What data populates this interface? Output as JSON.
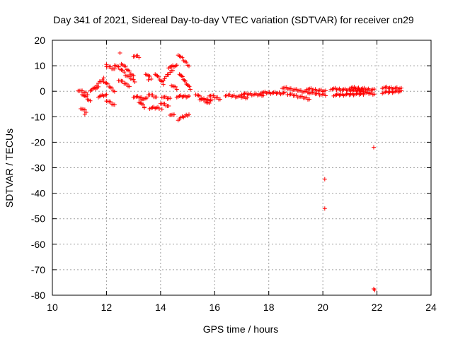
{
  "chart_data": {
    "type": "scatter",
    "title": "Day 341 of 2021, Sidereal Day-to-day VTEC variation (SDTVAR) for receiver cn29",
    "xlabel": "GPS time / hours",
    "ylabel": "SDTVAR / TECUs",
    "xlim": [
      10,
      24
    ],
    "ylim": [
      -80,
      20
    ],
    "xticks": [
      "10",
      "12",
      "14",
      "16",
      "18",
      "20",
      "22",
      "24"
    ],
    "yticks": [
      "20",
      "10",
      "0",
      "-10",
      "-20",
      "-30",
      "-40",
      "-50",
      "-60",
      "-70",
      "-80"
    ],
    "grid": true,
    "marker": "plus",
    "color": "#ff0000",
    "segments": [
      {
        "x": [
          10.95,
          11.3
        ],
        "y": [
          0.5,
          -1.0
        ]
      },
      {
        "x": [
          11.05,
          11.25
        ],
        "y": [
          -6.5,
          -8.0
        ]
      },
      {
        "x": [
          11.1,
          11.4
        ],
        "y": [
          -1.0,
          -4.0
        ]
      },
      {
        "x": [
          11.4,
          11.7
        ],
        "y": [
          0.5,
          1.5
        ]
      },
      {
        "x": [
          11.6,
          11.9
        ],
        "y": [
          2.0,
          5.0
        ]
      },
      {
        "x": [
          11.7,
          12.0
        ],
        "y": [
          -2.0,
          -1.5
        ]
      },
      {
        "x": [
          11.9,
          12.3
        ],
        "y": [
          4.0,
          0.0
        ]
      },
      {
        "x": [
          12.0,
          12.3
        ],
        "y": [
          -3.5,
          -5.5
        ]
      },
      {
        "x": [
          12.0,
          12.3
        ],
        "y": [
          10.0,
          8.5
        ]
      },
      {
        "x": [
          12.3,
          12.6
        ],
        "y": [
          10.5,
          8.0
        ]
      },
      {
        "x": [
          12.45,
          12.85
        ],
        "y": [
          4.5,
          2.0
        ]
      },
      {
        "x": [
          12.55,
          13.0
        ],
        "y": [
          11.0,
          6.0
        ]
      },
      {
        "x": [
          12.7,
          13.05
        ],
        "y": [
          6.5,
          4.0
        ]
      },
      {
        "x": [
          13.0,
          13.2
        ],
        "y": [
          14.0,
          13.5
        ]
      },
      {
        "x": [
          13.0,
          13.5
        ],
        "y": [
          -2.0,
          -3.0
        ]
      },
      {
        "x": [
          13.2,
          13.4
        ],
        "y": [
          -4.0,
          -6.0
        ]
      },
      {
        "x": [
          13.45,
          13.65
        ],
        "y": [
          7.0,
          5.0
        ]
      },
      {
        "x": [
          13.55,
          13.85
        ],
        "y": [
          -1.0,
          -2.5
        ]
      },
      {
        "x": [
          13.6,
          13.95
        ],
        "y": [
          -6.5,
          -6.5
        ]
      },
      {
        "x": [
          13.8,
          14.1
        ],
        "y": [
          7.0,
          3.0
        ]
      },
      {
        "x": [
          14.0,
          14.3
        ],
        "y": [
          -4.5,
          -6.0
        ]
      },
      {
        "x": [
          14.05,
          14.35
        ],
        "y": [
          -2.0,
          -3.0
        ]
      },
      {
        "x": [
          14.1,
          14.45
        ],
        "y": [
          4.5,
          8.5
        ]
      },
      {
        "x": [
          14.3,
          14.6
        ],
        "y": [
          9.5,
          10.0
        ]
      },
      {
        "x": [
          14.35,
          14.5
        ],
        "y": [
          -9.0,
          -9.5
        ]
      },
      {
        "x": [
          14.4,
          14.6
        ],
        "y": [
          2.5,
          1.0
        ]
      },
      {
        "x": [
          14.6,
          15.05
        ],
        "y": [
          -2.0,
          -2.0
        ]
      },
      {
        "x": [
          14.65,
          15.05
        ],
        "y": [
          -11.0,
          -9.0
        ]
      },
      {
        "x": [
          14.65,
          15.05
        ],
        "y": [
          14.5,
          10.0
        ]
      },
      {
        "x": [
          14.7,
          15.1
        ],
        "y": [
          7.0,
          1.0
        ]
      },
      {
        "x": [
          15.3,
          15.8
        ],
        "y": [
          -1.0,
          -5.0
        ]
      },
      {
        "x": [
          15.45,
          15.9
        ],
        "y": [
          -3.0,
          -3.5
        ]
      },
      {
        "x": [
          15.8,
          16.2
        ],
        "y": [
          -1.5,
          -3.0
        ]
      },
      {
        "x": [
          16.4,
          17.2
        ],
        "y": [
          -1.5,
          -2.5
        ]
      },
      {
        "x": [
          17.0,
          17.8
        ],
        "y": [
          -1.0,
          -1.5
        ]
      },
      {
        "x": [
          17.7,
          18.6
        ],
        "y": [
          -0.5,
          -0.8
        ]
      },
      {
        "x": [
          18.5,
          19.5
        ],
        "y": [
          1.5,
          -0.5
        ]
      },
      {
        "x": [
          18.7,
          19.5
        ],
        "y": [
          -1.0,
          -3.0
        ]
      },
      {
        "x": [
          19.4,
          20.1
        ],
        "y": [
          1.0,
          0.0
        ]
      },
      {
        "x": [
          19.5,
          20.1
        ],
        "y": [
          -0.5,
          -1.5
        ]
      },
      {
        "x": [
          20.3,
          21.5
        ],
        "y": [
          1.0,
          0.0
        ]
      },
      {
        "x": [
          20.4,
          21.5
        ],
        "y": [
          -1.5,
          -1.0
        ]
      },
      {
        "x": [
          21.0,
          21.9
        ],
        "y": [
          1.5,
          0.5
        ]
      },
      {
        "x": [
          21.5,
          21.9
        ],
        "y": [
          -0.5,
          -1.0
        ]
      },
      {
        "x": [
          22.2,
          22.9
        ],
        "y": [
          1.5,
          1.0
        ]
      },
      {
        "x": [
          22.2,
          22.9
        ],
        "y": [
          -0.5,
          0.0
        ]
      }
    ],
    "points": [
      {
        "x": 12.0,
        "y": 10.5
      },
      {
        "x": 12.5,
        "y": 15.0
      },
      {
        "x": 11.5,
        "y": 1.0
      },
      {
        "x": 11.2,
        "y": -9.0
      },
      {
        "x": 13.3,
        "y": -3.5
      },
      {
        "x": 12.65,
        "y": 7.5
      },
      {
        "x": 13.55,
        "y": 4.5
      },
      {
        "x": 14.05,
        "y": -7.0
      },
      {
        "x": 13.4,
        "y": -6.5
      },
      {
        "x": 20.07,
        "y": -34.5
      },
      {
        "x": 20.07,
        "y": -46.0
      },
      {
        "x": 21.88,
        "y": -22.0
      },
      {
        "x": 21.88,
        "y": -77.5
      },
      {
        "x": 21.92,
        "y": -78.0
      }
    ]
  }
}
